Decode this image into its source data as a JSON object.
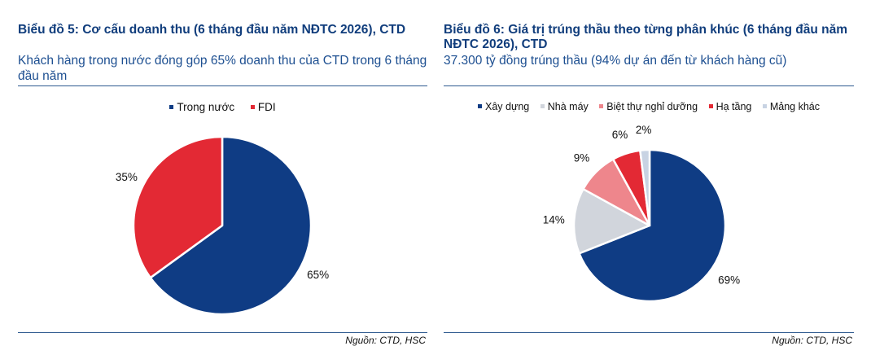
{
  "chart_data": [
    {
      "type": "pie",
      "title": "Biểu đồ 5: Cơ cấu doanh thu (6 tháng đầu năm NĐTC 2026), CTD",
      "subtitle": "Khách hàng trong nước đóng góp 65% doanh thu của CTD trong 6 tháng đầu năm",
      "legend_position": "top",
      "categories": [
        "Trong nước",
        "FDI"
      ],
      "values": [
        65,
        35
      ],
      "labels": [
        "65%",
        "35%"
      ],
      "colors": [
        "#0f3c84",
        "#e32934"
      ],
      "source": "Nguồn: CTD, HSC"
    },
    {
      "type": "pie",
      "title": "Biểu đồ 6: Giá trị trúng thầu theo từng phân khúc (6 tháng đầu năm NĐTC 2026), CTD",
      "subtitle": "37.300 tỷ đồng trúng thầu (94% dự án đến từ khách hàng cũ)",
      "legend_position": "top",
      "categories": [
        "Xây dựng",
        "Nhà máy",
        "Biệt thự nghỉ dưỡng",
        "Hạ tầng",
        "Mảng khác"
      ],
      "values": [
        69,
        14,
        9,
        6,
        2
      ],
      "labels": [
        "69%",
        "14%",
        "9%",
        "6%",
        "2%"
      ],
      "colors": [
        "#0f3c84",
        "#d1d5dc",
        "#ee868c",
        "#e32934",
        "#c8d3e3"
      ],
      "source": "Nguồn: CTD, HSC"
    }
  ]
}
